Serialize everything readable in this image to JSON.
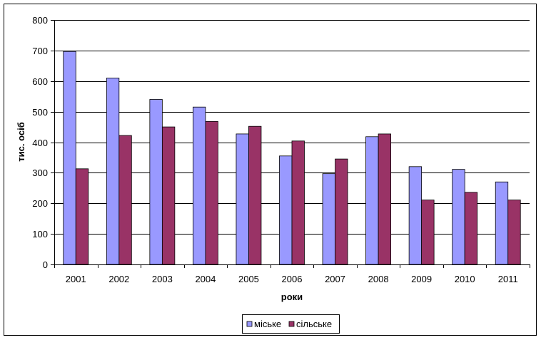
{
  "chart_data": {
    "type": "bar",
    "categories": [
      "2001",
      "2002",
      "2003",
      "2004",
      "2005",
      "2006",
      "2007",
      "2008",
      "2009",
      "2010",
      "2011"
    ],
    "series": [
      {
        "name": "міське",
        "color": "#9999ff",
        "values": [
          697,
          610,
          540,
          515,
          427,
          355,
          297,
          418,
          320,
          311,
          270
        ]
      },
      {
        "name": "сільське",
        "color": "#993366",
        "values": [
          313,
          422,
          450,
          468,
          452,
          404,
          345,
          427,
          211,
          236,
          211
        ]
      }
    ],
    "xlabel": "роки",
    "ylabel": "тис. осіб",
    "ylim": [
      0,
      800
    ],
    "yticks": [
      0,
      100,
      200,
      300,
      400,
      500,
      600,
      700,
      800
    ],
    "grid": true,
    "legend_position": "bottom"
  }
}
